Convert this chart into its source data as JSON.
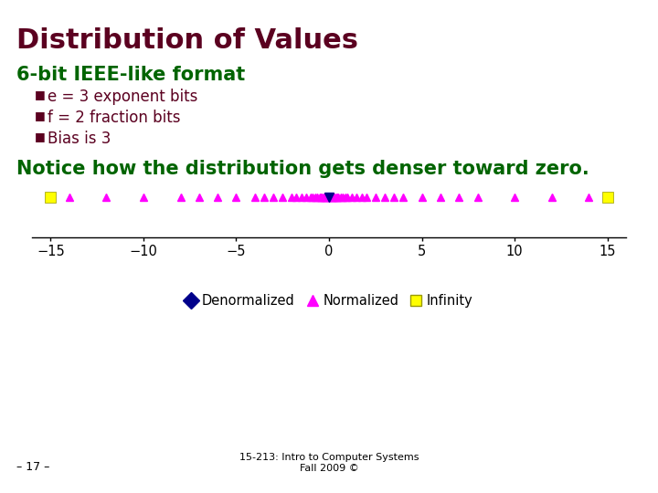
{
  "title": "Distribution of Values",
  "subtitle": "6-bit IEEE-like format",
  "bullets": [
    "e = 3 exponent bits",
    "f = 2 fraction bits",
    "Bias is 3"
  ],
  "notice": "Notice how the distribution gets denser toward zero.",
  "footer_left": "– 17 –",
  "footer_center": "15-213: Intro to Computer Systems\nFall 2009 ©",
  "title_color": "#5B0020",
  "subtitle_color": "#006400",
  "bullet_color": "#5B0020",
  "notice_color": "#006400",
  "footer_color": "#000000",
  "bg_color": "#FFFFFF",
  "ne": 3,
  "nf": 2,
  "bias": 3,
  "xlim": [
    -16,
    16
  ],
  "xticks": [
    -15,
    -10,
    -5,
    0,
    5,
    10,
    15
  ],
  "denorm_color": "#00008B",
  "norm_color": "#FF00FF",
  "inf_color": "#FFFF00",
  "legend_labels": [
    "Denormalized",
    "Normalized",
    "Infinity"
  ]
}
